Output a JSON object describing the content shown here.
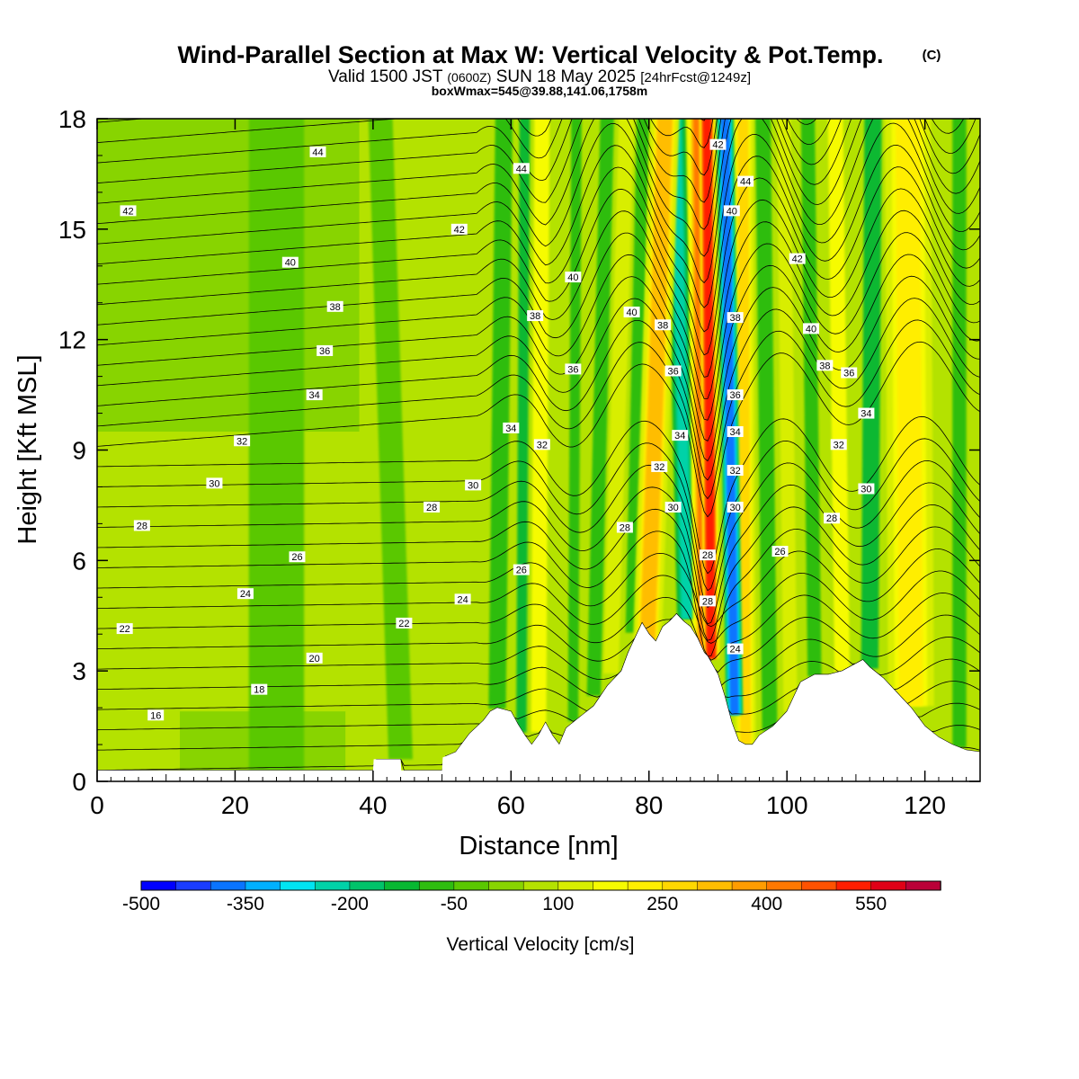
{
  "title": {
    "main": "Wind-Parallel Section at Max W: Vertical Velocity & Pot.Temp.",
    "copyright": "(C)",
    "valid_prefix": "Valid 1500 JST",
    "valid_z": "(0600Z)",
    "valid_date": "SUN 18 May 2025",
    "valid_fcst": "[24hrFcst@1249z]",
    "boxmax": "boxWmax=545@39.88,141.06,1758m"
  },
  "chart_data": {
    "type": "heatmap",
    "xlabel": "Distance [nm]",
    "ylabel": "Height [Kft MSL]",
    "xlim": [
      0,
      128
    ],
    "ylim": [
      0,
      18
    ],
    "x_ticks": [
      "0",
      "20",
      "40",
      "60",
      "80",
      "100",
      "120"
    ],
    "y_ticks": [
      "0",
      "3",
      "6",
      "9",
      "12",
      "15",
      "18"
    ],
    "grid": false,
    "colorbar": {
      "label": "Vertical Velocity [cm/s]",
      "range": [
        -500,
        625
      ],
      "step": 50,
      "tick_labels": [
        "-500",
        "-350",
        "-200",
        "-50",
        "100",
        "250",
        "400",
        "550"
      ],
      "tick_values": [
        -500,
        -350,
        -200,
        -50,
        100,
        250,
        400,
        550
      ],
      "colors": [
        "#0000ff",
        "#1a3cff",
        "#0a74ff",
        "#00b0ff",
        "#00e4f2",
        "#00d2a8",
        "#00c36a",
        "#08b832",
        "#2fbd10",
        "#5ac800",
        "#88d400",
        "#b4e200",
        "#d8ee00",
        "#f6fb00",
        "#ffee00",
        "#ffd800",
        "#ffbd00",
        "#ff9c00",
        "#ff7800",
        "#ff5200",
        "#ff1e00",
        "#e00016",
        "#ba0038",
        "#920058",
        "#6a007e",
        "#4c0094"
      ]
    },
    "terrain_kft": {
      "x": [
        0,
        40,
        40.1,
        44,
        44.1,
        50,
        50.1,
        52,
        54,
        56,
        57,
        58,
        60,
        61,
        62,
        63,
        64,
        65,
        66,
        67,
        68,
        70,
        72,
        74,
        76,
        77,
        78,
        79,
        80,
        81,
        82,
        83,
        84,
        85,
        86,
        87,
        88,
        88.5,
        90,
        91,
        92,
        93,
        94,
        95,
        96,
        98,
        100,
        101,
        102,
        104,
        106,
        108,
        110,
        111,
        112,
        114,
        116,
        118,
        120,
        122,
        124,
        126,
        128
      ],
      "y": [
        0.3,
        0.3,
        0.6,
        0.6,
        0.3,
        0.3,
        0.65,
        0.8,
        1.3,
        1.65,
        1.9,
        2.0,
        1.9,
        1.55,
        1.25,
        1.0,
        1.25,
        1.6,
        1.25,
        1.0,
        1.45,
        1.75,
        2.05,
        2.6,
        3.0,
        3.5,
        3.9,
        4.3,
        4.0,
        3.8,
        4.2,
        4.35,
        4.55,
        4.35,
        4.2,
        3.9,
        3.5,
        3.4,
        2.9,
        2.3,
        1.6,
        1.1,
        1.0,
        1.0,
        1.25,
        1.5,
        1.9,
        2.3,
        2.7,
        2.9,
        2.9,
        3.0,
        3.2,
        3.3,
        3.1,
        2.8,
        2.4,
        2.0,
        1.5,
        1.2,
        1.0,
        0.85,
        0.8
      ]
    },
    "w_features_cm_s": [
      {
        "x0": 89.0,
        "x1": 88.4,
        "width": 1.2,
        "value": 545
      },
      {
        "x0": 88.3,
        "x1": 87.4,
        "width": 2.0,
        "value": 400
      },
      {
        "x0": 92.4,
        "x1": 91.0,
        "width": 1.3,
        "value": -400
      },
      {
        "x0": 94.0,
        "x1": 93.6,
        "width": 1.6,
        "value": 250
      },
      {
        "x0": 85.5,
        "x1": 83.8,
        "width": 1.5,
        "value": -250
      },
      {
        "x0": 79.8,
        "x1": 82.4,
        "width": 2.2,
        "value": 300
      },
      {
        "x0": 77.5,
        "x1": 79.2,
        "width": 1.8,
        "value": -100
      },
      {
        "x0": 74.5,
        "x1": 76.8,
        "width": 2.2,
        "value": 100
      },
      {
        "x0": 72.0,
        "x1": 74.0,
        "width": 2.0,
        "value": -100
      },
      {
        "x0": 64.0,
        "x1": 64.5,
        "width": 2.2,
        "value": 150
      },
      {
        "x0": 61.5,
        "x1": 62.0,
        "width": 1.5,
        "value": -150
      },
      {
        "x0": 58.0,
        "x1": 59.0,
        "width": 2.5,
        "value": -100
      },
      {
        "x0": 69.0,
        "x1": 69.5,
        "width": 1.5,
        "value": -100
      },
      {
        "x0": 97.5,
        "x1": 96.5,
        "width": 2.2,
        "value": -100
      },
      {
        "x0": 100.5,
        "x1": 99.5,
        "width": 2.0,
        "value": 100
      },
      {
        "x0": 104.0,
        "x1": 103.0,
        "width": 2.0,
        "value": -100
      },
      {
        "x0": 108.0,
        "x1": 107.0,
        "width": 2.2,
        "value": 150
      },
      {
        "x0": 112.0,
        "x1": 112.5,
        "width": 2.5,
        "value": -150
      },
      {
        "x0": 118.0,
        "x1": 117.5,
        "width": 3.5,
        "value": 200
      },
      {
        "x0": 125.0,
        "x1": 125.0,
        "width": 2.0,
        "value": -100
      },
      {
        "x0": 44.0,
        "x1": 41.0,
        "width": 3.5,
        "value": -50
      },
      {
        "x0": 26.0,
        "x1": 26.0,
        "width": 8.0,
        "value": -25
      }
    ],
    "theta_contours": {
      "label_values": [
        "16",
        "18",
        "20",
        "22",
        "24",
        "26",
        "28",
        "30",
        "32",
        "34",
        "36",
        "38",
        "40",
        "42",
        "44"
      ],
      "labels": [
        {
          "text": "44",
          "x": 32,
          "y": 17.1
        },
        {
          "text": "44",
          "x": 61.5,
          "y": 16.65
        },
        {
          "text": "42",
          "x": 4.5,
          "y": 15.5
        },
        {
          "text": "42",
          "x": 52.5,
          "y": 15.0
        },
        {
          "text": "42",
          "x": 90,
          "y": 17.3
        },
        {
          "text": "44",
          "x": 94,
          "y": 16.3
        },
        {
          "text": "40",
          "x": 92,
          "y": 15.5
        },
        {
          "text": "42",
          "x": 101.5,
          "y": 14.2
        },
        {
          "text": "40",
          "x": 28,
          "y": 14.1
        },
        {
          "text": "40",
          "x": 69,
          "y": 13.7
        },
        {
          "text": "40",
          "x": 77.5,
          "y": 12.75
        },
        {
          "text": "40",
          "x": 103.5,
          "y": 12.3
        },
        {
          "text": "38",
          "x": 34.5,
          "y": 12.9
        },
        {
          "text": "38",
          "x": 82,
          "y": 12.4
        },
        {
          "text": "38",
          "x": 63.5,
          "y": 12.65
        },
        {
          "text": "38",
          "x": 92.5,
          "y": 12.6
        },
        {
          "text": "38",
          "x": 105.5,
          "y": 11.3
        },
        {
          "text": "36",
          "x": 33,
          "y": 11.7
        },
        {
          "text": "36",
          "x": 69,
          "y": 11.2
        },
        {
          "text": "36",
          "x": 83.5,
          "y": 11.15
        },
        {
          "text": "36",
          "x": 92.5,
          "y": 10.5
        },
        {
          "text": "36",
          "x": 109,
          "y": 11.1
        },
        {
          "text": "34",
          "x": 31.5,
          "y": 10.5
        },
        {
          "text": "34",
          "x": 60,
          "y": 9.6
        },
        {
          "text": "34",
          "x": 84.5,
          "y": 9.4
        },
        {
          "text": "34",
          "x": 92.5,
          "y": 9.5
        },
        {
          "text": "34",
          "x": 111.5,
          "y": 10.0
        },
        {
          "text": "32",
          "x": 21,
          "y": 9.25
        },
        {
          "text": "32",
          "x": 64.5,
          "y": 9.15
        },
        {
          "text": "32",
          "x": 81.5,
          "y": 8.55
        },
        {
          "text": "32",
          "x": 92.5,
          "y": 8.45
        },
        {
          "text": "32",
          "x": 107.5,
          "y": 9.15
        },
        {
          "text": "30",
          "x": 17,
          "y": 8.1
        },
        {
          "text": "30",
          "x": 54.5,
          "y": 8.05
        },
        {
          "text": "30",
          "x": 83.5,
          "y": 7.45
        },
        {
          "text": "30",
          "x": 92.5,
          "y": 7.45
        },
        {
          "text": "30",
          "x": 111.5,
          "y": 7.95
        },
        {
          "text": "28",
          "x": 6.5,
          "y": 6.95
        },
        {
          "text": "28",
          "x": 48.5,
          "y": 7.45
        },
        {
          "text": "28",
          "x": 76.5,
          "y": 6.9
        },
        {
          "text": "28",
          "x": 88.5,
          "y": 6.15
        },
        {
          "text": "28",
          "x": 106.5,
          "y": 7.15
        },
        {
          "text": "26",
          "x": 29,
          "y": 6.1
        },
        {
          "text": "26",
          "x": 61.5,
          "y": 5.75
        },
        {
          "text": "26",
          "x": 99,
          "y": 6.25
        },
        {
          "text": "24",
          "x": 21.5,
          "y": 5.1
        },
        {
          "text": "24",
          "x": 53,
          "y": 4.95
        },
        {
          "text": "22",
          "x": 4,
          "y": 4.15
        },
        {
          "text": "22",
          "x": 44.5,
          "y": 4.3
        },
        {
          "text": "20",
          "x": 31.5,
          "y": 3.35
        },
        {
          "text": "18",
          "x": 23.5,
          "y": 2.5
        },
        {
          "text": "16",
          "x": 8.5,
          "y": 1.8
        },
        {
          "text": "28",
          "x": 88.5,
          "y": 4.9
        },
        {
          "text": "24",
          "x": 92.5,
          "y": 3.6
        }
      ]
    }
  }
}
